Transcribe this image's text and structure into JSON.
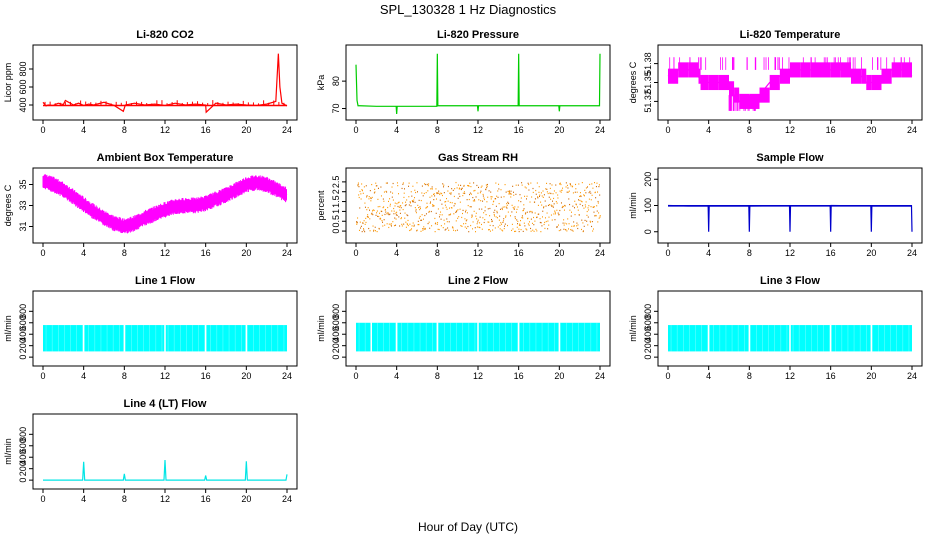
{
  "figure": {
    "title": "SPL_130328  1 Hz Diagnostics",
    "xlabel": "Hour of Day (UTC)"
  },
  "chart_data": [
    {
      "type": "line",
      "title": "Li-820 CO2",
      "ylabel": "Licor ppm",
      "color": "#ff0000",
      "xlim": [
        0,
        24
      ],
      "xticks": [
        0,
        4,
        8,
        12,
        16,
        20,
        24
      ],
      "ylim": [
        300,
        1000
      ],
      "yticks": [
        400,
        600,
        800
      ],
      "x": [
        0,
        0.3,
        0.5,
        1,
        1.5,
        2,
        2.2,
        3,
        3.5,
        4,
        4.5,
        5,
        6,
        7,
        7.9,
        8.1,
        9,
        10,
        11,
        12,
        13,
        14,
        15,
        16,
        16.05,
        17,
        18,
        19,
        20,
        21,
        22,
        22.9,
        23.15,
        23.3,
        23.5,
        24
      ],
      "y": [
        430,
        390,
        400,
        395,
        420,
        405,
        450,
        400,
        420,
        395,
        410,
        400,
        430,
        395,
        330,
        400,
        420,
        400,
        410,
        395,
        420,
        400,
        410,
        400,
        320,
        420,
        400,
        410,
        400,
        395,
        410,
        440,
        970,
        600,
        420,
        390
      ]
    },
    {
      "type": "line",
      "title": "Li-820 Pressure",
      "ylabel": "kPa",
      "color": "#00cc00",
      "xlim": [
        0,
        24
      ],
      "xticks": [
        0,
        4,
        8,
        12,
        16,
        20,
        24
      ],
      "ylim": [
        68,
        91
      ],
      "yticks": [
        70,
        80
      ],
      "x": [
        0,
        0.1,
        0.2,
        0.4,
        2,
        3.95,
        4,
        4.05,
        6,
        7.95,
        8,
        8.05,
        10,
        11.95,
        12,
        12.05,
        14,
        15.95,
        16,
        16.05,
        18,
        19.95,
        20,
        20.05,
        22,
        23.95,
        24
      ],
      "y": [
        86,
        73,
        71,
        71,
        70.8,
        70.8,
        68,
        70.8,
        70.8,
        70.8,
        90,
        71,
        71,
        71,
        69,
        71,
        71,
        71,
        90,
        71,
        71,
        71,
        69,
        71,
        71,
        71,
        90
      ]
    },
    {
      "type": "line",
      "title": "Li-820 Temperature",
      "ylabel": "degrees C",
      "color": "#ff00ff",
      "xlim": [
        0,
        24
      ],
      "xticks": [
        0,
        4,
        8,
        12,
        16,
        20,
        24
      ],
      "ylim": [
        51.3,
        51.4
      ],
      "yticks": [
        51.32,
        51.35,
        51.38
      ],
      "x": [
        0,
        1,
        2,
        3,
        3.2,
        4,
        5,
        6,
        6.5,
        7,
        8,
        9,
        10,
        11,
        12,
        13,
        14,
        15,
        16,
        17,
        18,
        19,
        19.5,
        20,
        21,
        22,
        23,
        24
      ],
      "y": [
        51.36,
        51.37,
        51.37,
        51.36,
        51.35,
        51.35,
        51.35,
        51.34,
        51.33,
        51.32,
        51.32,
        51.33,
        51.35,
        51.36,
        51.37,
        51.37,
        51.37,
        51.37,
        51.37,
        51.37,
        51.36,
        51.36,
        51.35,
        51.35,
        51.36,
        51.37,
        51.37,
        51.36
      ]
    },
    {
      "type": "line",
      "title": "Ambient Box Temperature",
      "ylabel": "degrees C",
      "color": "#ff00ff",
      "xlim": [
        0,
        24
      ],
      "xticks": [
        0,
        4,
        8,
        12,
        16,
        20,
        24
      ],
      "ylim": [
        30,
        36
      ],
      "yticks": [
        31,
        33,
        35
      ],
      "x": [
        0,
        1,
        2,
        3,
        4,
        5,
        6,
        7,
        8,
        9,
        10,
        11,
        12,
        13,
        14,
        15,
        16,
        17,
        18,
        19,
        20,
        21,
        22,
        23,
        24
      ],
      "y": [
        35.3,
        35.0,
        34.5,
        33.8,
        33.1,
        32.4,
        31.8,
        31.3,
        31.0,
        31.3,
        31.8,
        32.2,
        32.6,
        32.9,
        33.0,
        33.0,
        33.2,
        33.6,
        34.0,
        34.5,
        35.0,
        35.2,
        35.0,
        34.5,
        34.0
      ]
    },
    {
      "type": "scatter",
      "title": "Gas Stream RH",
      "ylabel": "percent",
      "color": "#ff9900",
      "xlim": [
        0,
        24
      ],
      "xticks": [
        0,
        4,
        8,
        12,
        16,
        20,
        24
      ],
      "ylim": [
        -0.3,
        2.9
      ],
      "yticks": [
        0.0,
        0.5,
        1.0,
        1.5,
        2.0,
        2.5
      ],
      "band": {
        "low": 0.0,
        "high": 2.5
      },
      "x": [
        0,
        2,
        4,
        6,
        8,
        10,
        12,
        14,
        16,
        18,
        20,
        22,
        24
      ],
      "y": [
        1.2,
        1.3,
        1.2,
        1.3,
        1.2,
        1.3,
        1.3,
        1.2,
        1.3,
        1.2,
        1.3,
        1.2,
        1.2
      ]
    },
    {
      "type": "line",
      "title": "Sample Flow",
      "ylabel": "ml/min",
      "color": "#0000cc",
      "xlim": [
        0,
        24
      ],
      "xticks": [
        0,
        4,
        8,
        12,
        16,
        20,
        24
      ],
      "ylim": [
        -20,
        220
      ],
      "yticks": [
        0,
        100,
        200
      ],
      "x": [
        0,
        2,
        3.95,
        4,
        4.05,
        6,
        7.95,
        8,
        8.05,
        10,
        11.95,
        12,
        12.05,
        14,
        15.95,
        16,
        16.05,
        18,
        19.95,
        20,
        20.05,
        22,
        23.95,
        24
      ],
      "y": [
        100,
        98,
        98,
        0,
        98,
        98,
        98,
        0,
        98,
        99,
        99,
        0,
        99,
        99,
        99,
        0,
        100,
        99,
        99,
        0,
        98,
        98,
        98,
        0
      ]
    },
    {
      "type": "area",
      "title": "Line 1 Flow",
      "ylabel": "ml/min",
      "color": "#00ffff",
      "xlim": [
        0,
        24
      ],
      "xticks": [
        0,
        4,
        8,
        12,
        16,
        20,
        24
      ],
      "ylim": [
        -50,
        1050
      ],
      "yticks": [
        0,
        200,
        400,
        600,
        800
      ],
      "band": {
        "low": 100,
        "high": 560
      },
      "gaps": [
        4,
        8,
        12,
        16,
        20
      ]
    },
    {
      "type": "area",
      "title": "Line 2 Flow",
      "ylabel": "ml/min",
      "color": "#00ffff",
      "xlim": [
        0,
        24
      ],
      "xticks": [
        0,
        4,
        8,
        12,
        16,
        20,
        24
      ],
      "ylim": [
        -50,
        1050
      ],
      "yticks": [
        0,
        200,
        400,
        600,
        800
      ],
      "band": {
        "low": 100,
        "high": 600
      },
      "gaps": [
        1.5,
        4,
        8,
        12,
        16,
        20
      ]
    },
    {
      "type": "area",
      "title": "Line 3 Flow",
      "ylabel": "ml/min",
      "color": "#00ffff",
      "xlim": [
        0,
        24
      ],
      "xticks": [
        0,
        4,
        8,
        12,
        16,
        20,
        24
      ],
      "ylim": [
        -50,
        1050
      ],
      "yticks": [
        0,
        200,
        400,
        600,
        800
      ],
      "band": {
        "low": 100,
        "high": 560
      },
      "gaps": [
        4,
        8,
        12,
        16,
        20
      ]
    },
    {
      "type": "line",
      "title": "Line 4 (LT) Flow",
      "ylabel": "ml/min",
      "color": "#00e5e5",
      "xlim": [
        0,
        24
      ],
      "xticks": [
        0,
        4,
        8,
        12,
        16,
        20,
        24
      ],
      "ylim": [
        -50,
        1050
      ],
      "yticks": [
        0,
        200,
        400,
        600,
        800
      ],
      "x": [
        0,
        3.9,
        4,
        4.1,
        7.9,
        8,
        8.1,
        11.9,
        12,
        12.1,
        15.9,
        16,
        16.1,
        19.9,
        20,
        20.1,
        23.9,
        24
      ],
      "y": [
        0,
        0,
        320,
        0,
        0,
        110,
        0,
        0,
        350,
        0,
        0,
        80,
        0,
        0,
        330,
        0,
        0,
        100
      ]
    }
  ]
}
